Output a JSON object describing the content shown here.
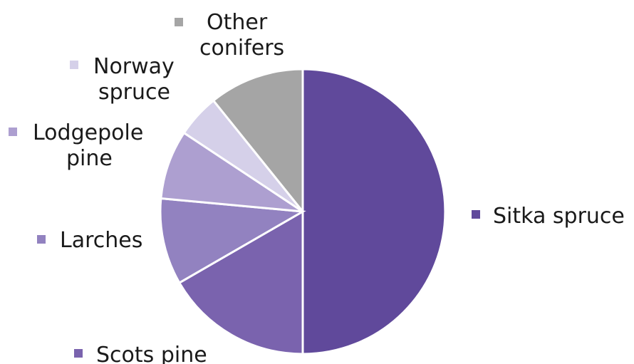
{
  "chart_data": {
    "type": "pie",
    "start_angle_deg": 0,
    "direction": "clockwise",
    "slices": [
      {
        "name": "Sitka spruce",
        "label_lines": [
          "Sitka spruce"
        ],
        "value": 51,
        "color": "#60499b"
      },
      {
        "name": "Scots pine",
        "label_lines": [
          "Scots pine"
        ],
        "value": 17,
        "color": "#7a63ae"
      },
      {
        "name": "Larches",
        "label_lines": [
          "Larches"
        ],
        "value": 10,
        "color": "#9282c0"
      },
      {
        "name": "Lodgepole pine",
        "label_lines": [
          "Lodgepole",
          "pine"
        ],
        "value": 8,
        "color": "#ad9fd0"
      },
      {
        "name": "Norway spruce",
        "label_lines": [
          "Norway",
          "spruce"
        ],
        "value": 5,
        "color": "#d5d0e9"
      },
      {
        "name": "Other conifers",
        "label_lines": [
          "Other",
          "conifers"
        ],
        "value": 11,
        "color": "#a5a5a5"
      }
    ],
    "legend": "labels beside slices"
  }
}
